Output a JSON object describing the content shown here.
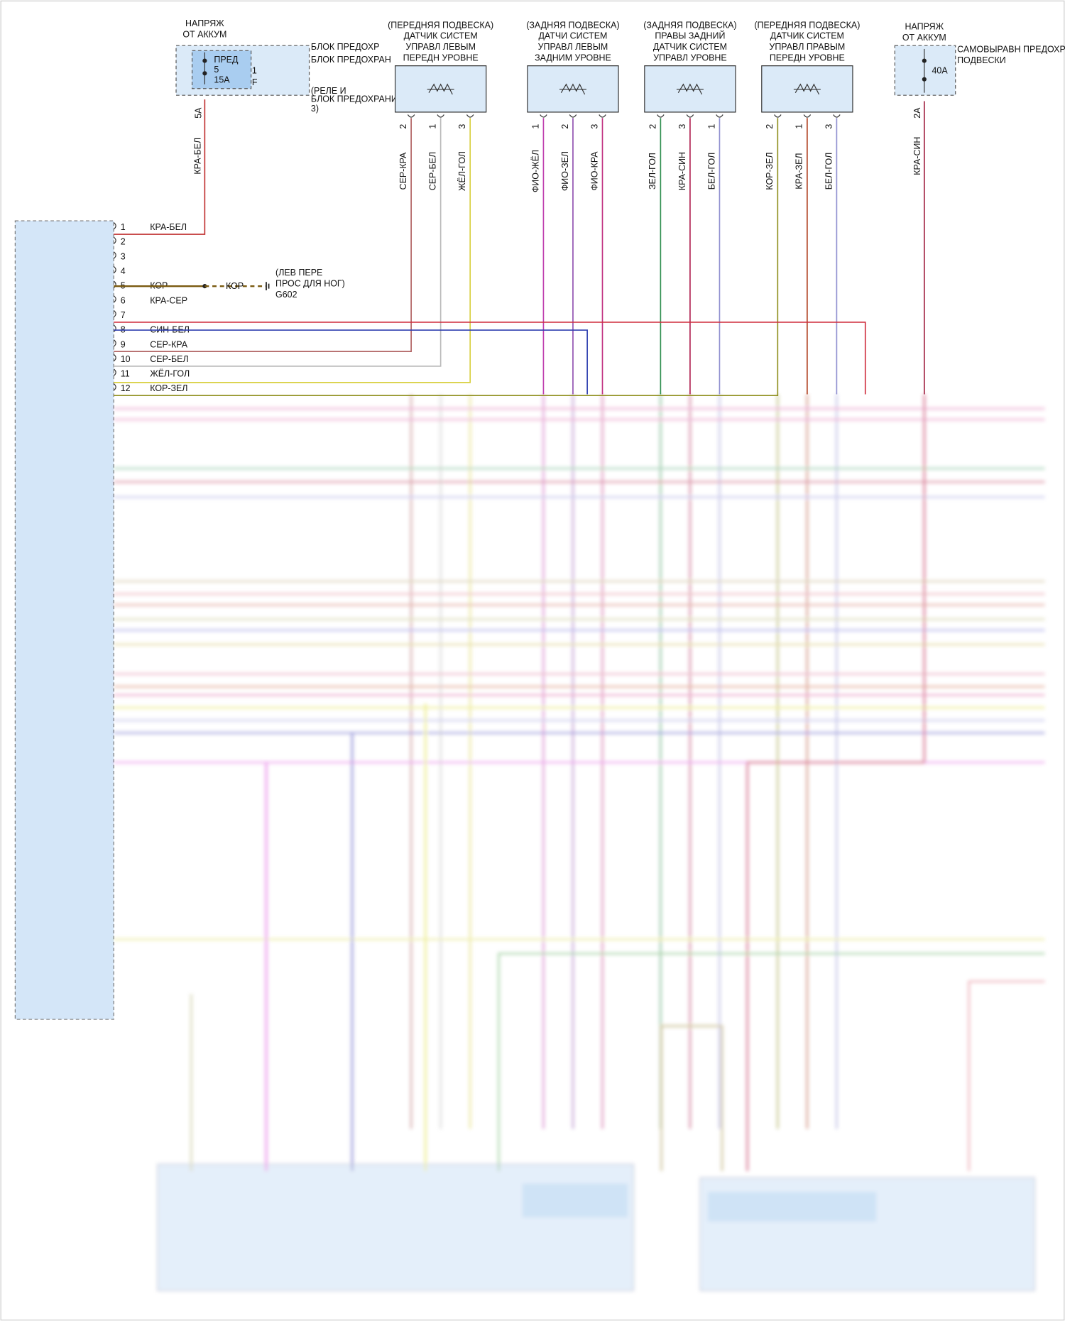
{
  "supply_left": {
    "lines": [
      "НАПРЯЖ",
      "ОТ АККУМ"
    ]
  },
  "fuse_block_left": {
    "fuse_lines": [
      "ПРЕД",
      "5",
      "15A"
    ],
    "label_lines": [
      "БЛОК ПРЕДОХР",
      "БЛОК ПРЕДОХРАН",
      "1",
      "F",
      "(РЕЛЕ И",
      "БЛОК ПРЕДОХРАНИ",
      "3)"
    ],
    "amp": "5A",
    "wire": "КРА-БЕЛ"
  },
  "sensors": [
    {
      "title": [
        "(ПЕРЕДНЯЯ ПОДВЕСКА)",
        "ДАТЧИК СИСТЕМ",
        "УПРАВЛ ЛЕВЫМ",
        "ПЕРЕДН УРОВНЕ"
      ],
      "pins": [
        {
          "pin": "2",
          "wire": "СЕР-КРА",
          "color": "#b06060"
        },
        {
          "pin": "1",
          "wire": "СЕР-БЕЛ",
          "color": "#bbbbbb"
        },
        {
          "pin": "3",
          "wire": "ЖЁЛ-ГОЛ",
          "color": "#d8d040"
        }
      ]
    },
    {
      "title": [
        "(ЗАДНЯЯ ПОДВЕСКА)",
        "ДАТЧИ СИСТЕМ",
        "УПРАВЛ ЛЕВЫМ",
        "ЗАДНИМ УРОВНЕ"
      ],
      "pins": [
        {
          "pin": "1",
          "wire": "ФИО-ЖЁЛ",
          "color": "#c040b0"
        },
        {
          "pin": "2",
          "wire": "ФИО-ЗЕЛ",
          "color": "#9050b0"
        },
        {
          "pin": "3",
          "wire": "ФИО-КРА",
          "color": "#c03080"
        }
      ]
    },
    {
      "title": [
        "(ЗАДНЯЯ ПОДВЕСКА)",
        "ПРАВЫ ЗАДНИЙ",
        "ДАТЧИК СИСТЕМ",
        "УПРАВЛ УРОВНЕ"
      ],
      "pins": [
        {
          "pin": "2",
          "wire": "ЗЕЛ-ГОЛ",
          "color": "#309050"
        },
        {
          "pin": "3",
          "wire": "КРА-СИН",
          "color": "#b02050"
        },
        {
          "pin": "1",
          "wire": "БЕЛ-ГОЛ",
          "color": "#9090d0"
        }
      ]
    },
    {
      "title": [
        "(ПЕРЕДНЯЯ ПОДВЕСКА)",
        "ДАТЧИК СИСТЕМ",
        "УПРАВЛ ПРАВЫМ",
        "ПЕРЕДН УРОВНЕ"
      ],
      "pins": [
        {
          "pin": "2",
          "wire": "КОР-ЗЕЛ",
          "color": "#909020"
        },
        {
          "pin": "1",
          "wire": "КРА-ЗЕЛ",
          "color": "#b04020"
        },
        {
          "pin": "3",
          "wire": "БЕЛ-ГОЛ",
          "color": "#9090d0"
        }
      ]
    }
  ],
  "supply_right": {
    "lines": [
      "НАПРЯЖ",
      "ОТ АККУМ"
    ],
    "fuse": "40A",
    "label_lines": [
      "САМОВЫРАВН ПРЕДОХР",
      "ПОДВЕСКИ"
    ],
    "amp": "2A",
    "wire": "КРА-СИН"
  },
  "connector": {
    "pins": [
      {
        "pin": "1",
        "wire": "КРА-БЕЛ",
        "color": "#c03030"
      },
      {
        "pin": "2"
      },
      {
        "pin": "3"
      },
      {
        "pin": "4"
      },
      {
        "pin": "5",
        "wire": "КОР",
        "color": "#7a5a10"
      },
      {
        "pin": "6",
        "wire": "КРА-СЕР"
      },
      {
        "pin": "7",
        "color": "#d03040"
      },
      {
        "pin": "8",
        "wire": "СИН-БЕЛ",
        "color": "#3040b0"
      },
      {
        "pin": "9",
        "wire": "СЕР-КРА",
        "color": "#b06060"
      },
      {
        "pin": "10",
        "wire": "СЕР-БЕЛ",
        "color": "#bbbbbb"
      },
      {
        "pin": "11",
        "wire": "ЖЁЛ-ГОЛ",
        "color": "#d8d040"
      },
      {
        "pin": "12",
        "wire": "КОР-ЗЕЛ",
        "color": "#909020"
      }
    ]
  },
  "ground": {
    "wire": "КОР",
    "lines": [
      "(ЛЕВ ПЕРЕ",
      "ПРОС ДЛЯ НОГ)",
      "G602"
    ]
  }
}
